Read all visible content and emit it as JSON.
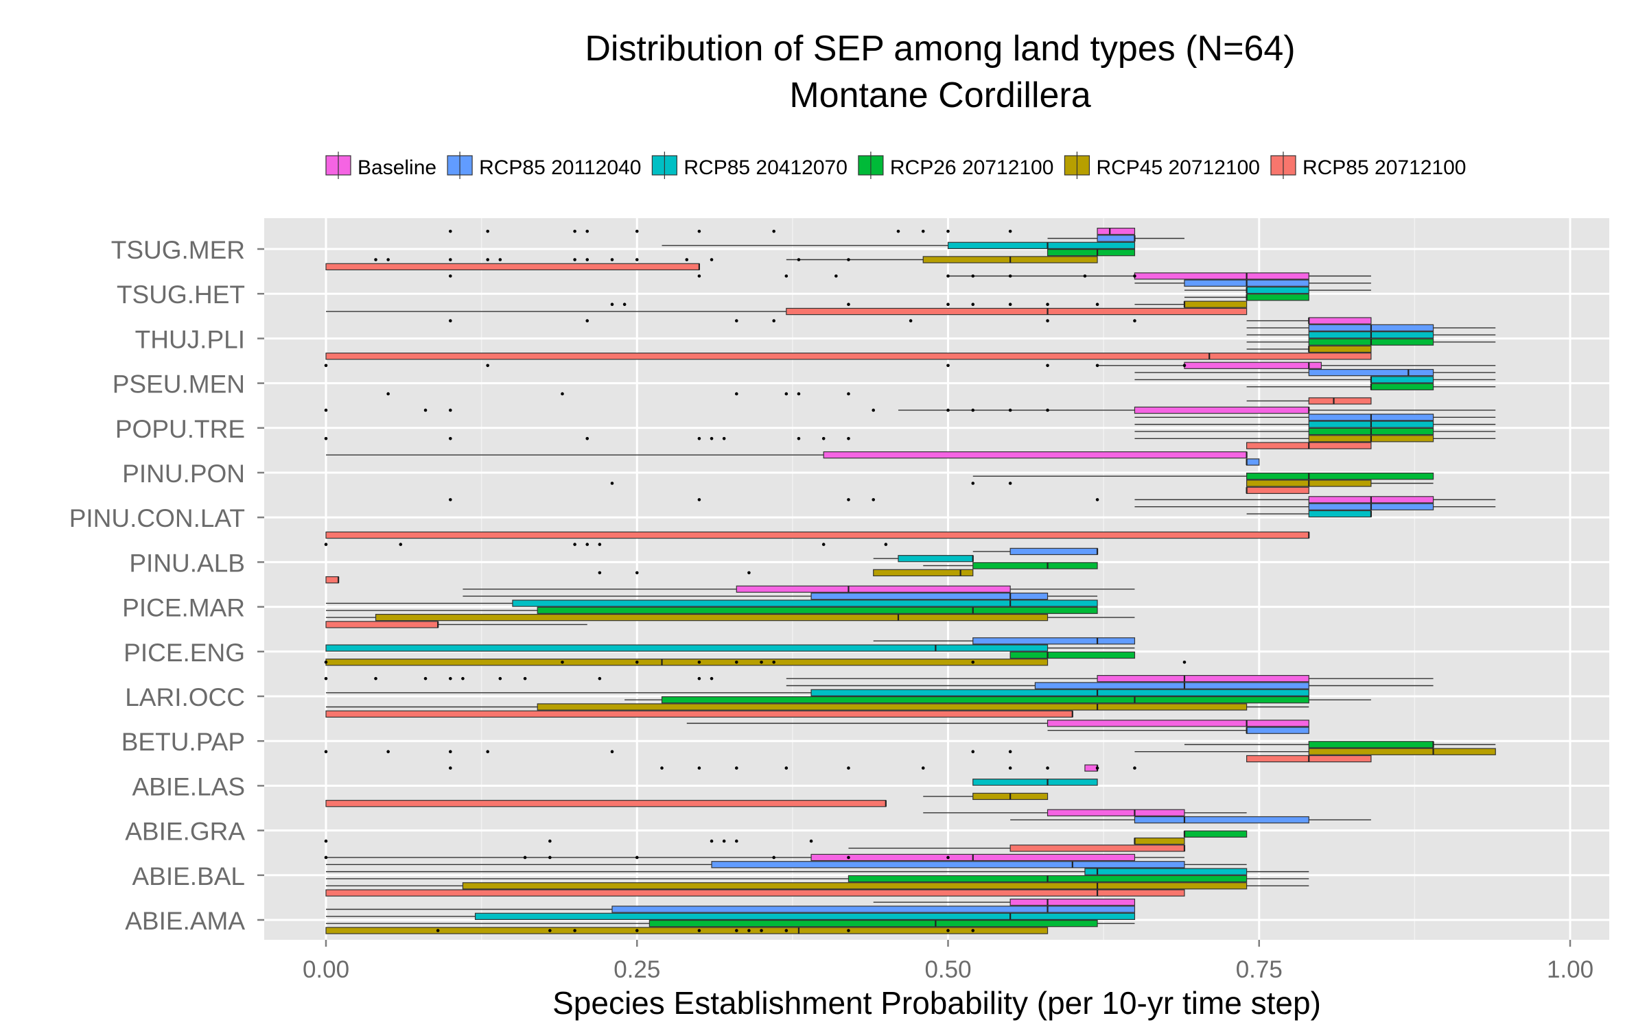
{
  "chart_data": {
    "type": "boxplot",
    "orientation": "horizontal",
    "title": "Distribution of SEP among land types (N=64)",
    "subtitle": "Montane Cordillera",
    "xlabel": "Species Establishment Probability (per 10-yr time step)",
    "ylabel": "",
    "xlim": [
      -0.1,
      1.05
    ],
    "xticks": [
      "0.00",
      "0.25",
      "0.50",
      "0.75",
      "1.00"
    ],
    "grid": true,
    "legend_position": "top",
    "species": [
      "TSUG.MER",
      "TSUG.HET",
      "THUJ.PLI",
      "PSEU.MEN",
      "POPU.TRE",
      "PINU.PON",
      "PINU.CON.LAT",
      "PINU.ALB",
      "PICE.MAR",
      "PICE.ENG",
      "LARI.OCC",
      "BETU.PAP",
      "ABIE.LAS",
      "ABIE.GRA",
      "ABIE.BAL",
      "ABIE.AMA"
    ],
    "series": [
      {
        "name": "Baseline",
        "color": "#F564E3",
        "boxes": [
          [
            0.62,
            0.62,
            0.63,
            0.65,
            0.65
          ],
          [
            0.5,
            0.65,
            0.74,
            0.79,
            0.84
          ],
          [
            0.74,
            0.79,
            0.79,
            0.84,
            0.84
          ],
          [
            0.62,
            0.69,
            0.79,
            0.8,
            0.94
          ],
          [
            0.46,
            0.65,
            0.79,
            0.79,
            0.94
          ],
          [
            0.0,
            0.4,
            0.74,
            0.74,
            0.74
          ],
          [
            0.65,
            0.79,
            0.84,
            0.89,
            0.94
          ],
          null,
          [
            0.11,
            0.33,
            0.42,
            0.55,
            0.65
          ],
          null,
          [
            0.37,
            0.62,
            0.69,
            0.79,
            0.89
          ],
          [
            0.29,
            0.58,
            0.74,
            0.79,
            0.79
          ],
          [
            0.61,
            0.61,
            0.62,
            0.62,
            0.62
          ],
          [
            0.48,
            0.58,
            0.65,
            0.69,
            0.74
          ],
          [
            0.0,
            0.39,
            0.52,
            0.65,
            0.69
          ],
          [
            0.44,
            0.55,
            0.58,
            0.65,
            0.65
          ]
        ]
      },
      {
        "name": "RCP85 20112040",
        "color": "#619CFF",
        "boxes": [
          [
            0.58,
            0.62,
            0.65,
            0.65,
            0.69
          ],
          [
            0.65,
            0.69,
            0.74,
            0.79,
            0.84
          ],
          [
            0.74,
            0.79,
            0.84,
            0.89,
            0.94
          ],
          [
            0.65,
            0.79,
            0.87,
            0.89,
            0.94
          ],
          [
            0.65,
            0.79,
            0.84,
            0.89,
            0.94
          ],
          [
            0.74,
            0.74,
            0.74,
            0.75,
            0.75
          ],
          [
            0.65,
            0.79,
            0.84,
            0.89,
            0.94
          ],
          [
            0.52,
            0.55,
            0.62,
            0.62,
            0.62
          ],
          [
            0.11,
            0.39,
            0.55,
            0.58,
            0.62
          ],
          [
            0.44,
            0.52,
            0.62,
            0.65,
            0.65
          ],
          [
            0.37,
            0.57,
            0.69,
            0.79,
            0.89
          ],
          [
            0.58,
            0.74,
            0.74,
            0.79,
            0.79
          ],
          null,
          [
            0.55,
            0.65,
            0.69,
            0.79,
            0.84
          ],
          [
            0.0,
            0.31,
            0.6,
            0.69,
            0.74
          ],
          [
            0.0,
            0.23,
            0.58,
            0.65,
            0.65
          ]
        ]
      },
      {
        "name": "RCP85 20412070",
        "color": "#00BFC4",
        "boxes": [
          [
            0.27,
            0.5,
            0.58,
            0.65,
            0.65
          ],
          [
            0.69,
            0.74,
            0.74,
            0.79,
            0.84
          ],
          [
            0.74,
            0.79,
            0.84,
            0.89,
            0.94
          ],
          [
            0.65,
            0.84,
            0.84,
            0.89,
            0.94
          ],
          [
            0.65,
            0.79,
            0.84,
            0.89,
            0.94
          ],
          null,
          [
            0.74,
            0.79,
            0.84,
            0.84,
            0.84
          ],
          [
            0.44,
            0.46,
            0.52,
            0.52,
            0.52
          ],
          [
            0.0,
            0.15,
            0.55,
            0.62,
            0.62
          ],
          [
            0.0,
            0.0,
            0.49,
            0.58,
            0.65
          ],
          [
            0.0,
            0.39,
            0.62,
            0.79,
            0.79
          ],
          null,
          [
            0.52,
            0.52,
            0.58,
            0.62,
            0.62
          ],
          null,
          [
            0.0,
            0.61,
            0.62,
            0.74,
            0.79
          ],
          [
            0.0,
            0.12,
            0.55,
            0.65,
            0.65
          ]
        ]
      },
      {
        "name": "RCP26 20712100",
        "color": "#00BA38",
        "boxes": [
          [
            0.58,
            0.58,
            0.62,
            0.65,
            0.65
          ],
          [
            0.69,
            0.74,
            0.74,
            0.79,
            0.79
          ],
          [
            0.74,
            0.79,
            0.84,
            0.89,
            0.94
          ],
          [
            0.74,
            0.84,
            0.84,
            0.89,
            0.94
          ],
          [
            0.65,
            0.79,
            0.84,
            0.89,
            0.94
          ],
          [
            0.52,
            0.74,
            0.79,
            0.89,
            0.89
          ],
          null,
          [
            0.48,
            0.52,
            0.58,
            0.62,
            0.62
          ],
          [
            0.0,
            0.17,
            0.52,
            0.62,
            0.62
          ],
          [
            0.55,
            0.55,
            0.58,
            0.65,
            0.65
          ],
          [
            0.24,
            0.27,
            0.65,
            0.79,
            0.84
          ],
          [
            0.69,
            0.79,
            0.89,
            0.89,
            0.94
          ],
          null,
          [
            0.69,
            0.69,
            0.69,
            0.74,
            0.74
          ],
          [
            0.0,
            0.42,
            0.58,
            0.74,
            0.79
          ],
          [
            0.0,
            0.26,
            0.49,
            0.62,
            0.65
          ]
        ]
      },
      {
        "name": "RCP45 20712100",
        "color": "#B79F00",
        "boxes": [
          [
            0.37,
            0.48,
            0.55,
            0.62,
            0.62
          ],
          [
            0.65,
            0.69,
            0.69,
            0.74,
            0.74
          ],
          [
            0.74,
            0.79,
            0.79,
            0.84,
            0.84
          ],
          null,
          [
            0.65,
            0.79,
            0.84,
            0.89,
            0.94
          ],
          [
            0.74,
            0.74,
            0.79,
            0.84,
            0.89
          ],
          null,
          [
            0.44,
            0.44,
            0.51,
            0.52,
            0.52
          ],
          [
            0.0,
            0.04,
            0.46,
            0.58,
            0.65
          ],
          [
            0.0,
            0.0,
            0.27,
            0.58,
            0.58
          ],
          [
            0.0,
            0.17,
            0.62,
            0.74,
            0.79
          ],
          [
            0.65,
            0.79,
            0.89,
            0.94,
            0.94
          ],
          [
            0.48,
            0.52,
            0.55,
            0.58,
            0.58
          ],
          [
            0.65,
            0.65,
            0.65,
            0.69,
            0.69
          ],
          [
            0.0,
            0.11,
            0.62,
            0.74,
            0.79
          ],
          [
            0.0,
            0.0,
            0.38,
            0.58,
            0.58
          ]
        ]
      },
      {
        "name": "RCP85 20712100",
        "color": "#F8766D",
        "boxes": [
          [
            0.0,
            0.0,
            0.3,
            0.3,
            0.3
          ],
          [
            0.0,
            0.37,
            0.58,
            0.74,
            0.74
          ],
          [
            0.0,
            0.0,
            0.71,
            0.84,
            0.84
          ],
          [
            0.74,
            0.79,
            0.81,
            0.84,
            0.84
          ],
          [
            0.74,
            0.74,
            0.79,
            0.84,
            0.84
          ],
          [
            0.74,
            0.74,
            0.74,
            0.79,
            0.79
          ],
          [
            0.0,
            0.0,
            0.79,
            0.79,
            0.79
          ],
          [
            0.0,
            0.0,
            0.01,
            0.01,
            0.01
          ],
          [
            0.0,
            0.0,
            0.09,
            0.09,
            0.21
          ],
          null,
          [
            0.0,
            0.0,
            0.6,
            0.6,
            0.6
          ],
          [
            0.74,
            0.74,
            0.79,
            0.84,
            0.84
          ],
          [
            0.0,
            0.0,
            0.45,
            0.45,
            0.45
          ],
          [
            0.42,
            0.55,
            0.69,
            0.69,
            0.69
          ],
          [
            0.0,
            0.0,
            0.62,
            0.69,
            0.69
          ],
          null
        ]
      }
    ],
    "outliers": [
      {
        "x": [
          0.1,
          0.13,
          0.2,
          0.21,
          0.25,
          0.3,
          0.36,
          0.46,
          0.48,
          0.5,
          0.55
        ],
        "y": [
          0,
          0,
          0,
          0,
          0,
          0,
          0,
          0,
          0,
          0,
          0
        ]
      },
      {
        "x": [
          0.04,
          0.05,
          0.1,
          0.13,
          0.14,
          0.2,
          0.21,
          0.23,
          0.25,
          0.29,
          0.31,
          0.38,
          0.42
        ],
        "y": [
          0,
          0,
          0,
          0,
          0,
          0,
          0,
          0,
          0,
          0,
          0,
          0,
          0
        ]
      },
      {
        "x": [
          0.1,
          0.3,
          0.37,
          0.41,
          0.5,
          0.52,
          0.55,
          0.61,
          0.65
        ],
        "y": [
          1,
          1,
          1,
          1,
          1,
          1,
          1,
          1,
          1
        ]
      },
      {
        "x": [
          0.23,
          0.24,
          0.42,
          0.5,
          0.52,
          0.55,
          0.58,
          0.62
        ],
        "y": [
          1,
          1,
          1,
          1,
          1,
          1,
          1,
          1
        ]
      },
      {
        "x": [
          0.1,
          0.21,
          0.33,
          0.36,
          0.47,
          0.58,
          0.65
        ],
        "y": [
          2,
          2,
          2,
          2,
          2,
          2,
          2
        ]
      },
      {
        "x": [
          0.05,
          0.19,
          0.33,
          0.37,
          0.38,
          0.42
        ],
        "y": [
          3,
          3,
          3,
          3,
          3,
          3
        ]
      },
      {
        "x": [
          0.0,
          0.13,
          0.5,
          0.58,
          0.62,
          0.69
        ],
        "y": [
          3,
          3,
          3,
          3,
          3,
          3
        ]
      },
      {
        "x": [
          0.0,
          0.1,
          0.21,
          0.3,
          0.31,
          0.32,
          0.38,
          0.4,
          0.42
        ],
        "y": [
          4,
          4,
          4,
          4,
          4,
          4,
          4,
          4,
          4
        ]
      },
      {
        "x": [
          0.0,
          0.08,
          0.1,
          0.44,
          0.5,
          0.52,
          0.55,
          0.58
        ],
        "y": [
          4,
          4,
          4,
          4,
          4,
          4,
          4,
          4
        ]
      },
      {
        "x": [
          0.23,
          0.52,
          0.55
        ],
        "y": [
          5,
          5,
          5
        ]
      },
      {
        "x": [
          0.1,
          0.3,
          0.42,
          0.44,
          0.62
        ],
        "y": [
          6,
          6,
          6,
          6,
          6
        ]
      },
      {
        "x": [
          0.22,
          0.25,
          0.34
        ],
        "y": [
          7,
          7,
          7
        ]
      },
      {
        "x": [
          0.0,
          0.06,
          0.2,
          0.21,
          0.22,
          0.4,
          0.45
        ],
        "y": [
          7,
          7,
          7,
          7,
          7,
          7,
          7
        ]
      },
      {
        "x": [
          0.0,
          0.19,
          0.25,
          0.3,
          0.33,
          0.35,
          0.36,
          0.52,
          0.69
        ],
        "y": [
          9,
          9,
          9,
          9,
          9,
          9,
          9,
          9,
          9
        ]
      },
      {
        "x": [
          0.0,
          0.04,
          0.08,
          0.1,
          0.11,
          0.14,
          0.16,
          0.22,
          0.3,
          0.31
        ],
        "y": [
          10,
          10,
          10,
          10,
          10,
          10,
          10,
          10,
          10,
          10
        ]
      },
      {
        "x": [
          0.0,
          0.05,
          0.1,
          0.13,
          0.23,
          0.52,
          0.55
        ],
        "y": [
          11,
          11,
          11,
          11,
          11,
          11,
          11
        ]
      },
      {
        "x": [
          0.1,
          0.27,
          0.3,
          0.33,
          0.37,
          0.42,
          0.48,
          0.55,
          0.58,
          0.62,
          0.65
        ],
        "y": [
          12,
          12,
          12,
          12,
          12,
          12,
          12,
          12,
          12,
          12,
          12
        ]
      },
      {
        "x": [
          0.0,
          0.18,
          0.31,
          0.32,
          0.33,
          0.39
        ],
        "y": [
          13,
          13,
          13,
          13,
          13,
          13
        ]
      },
      {
        "x": [
          0.0,
          0.16,
          0.18,
          0.25,
          0.36,
          0.42,
          0.5
        ],
        "y": [
          14,
          14,
          14,
          14,
          14,
          14,
          14
        ]
      },
      {
        "x": [
          0.09,
          0.18,
          0.2,
          0.25,
          0.3,
          0.33,
          0.34,
          0.35,
          0.37,
          0.42,
          0.5,
          0.52
        ],
        "y": [
          15,
          15,
          15,
          15,
          15,
          15,
          15,
          15,
          15,
          15,
          15,
          15
        ]
      }
    ]
  }
}
